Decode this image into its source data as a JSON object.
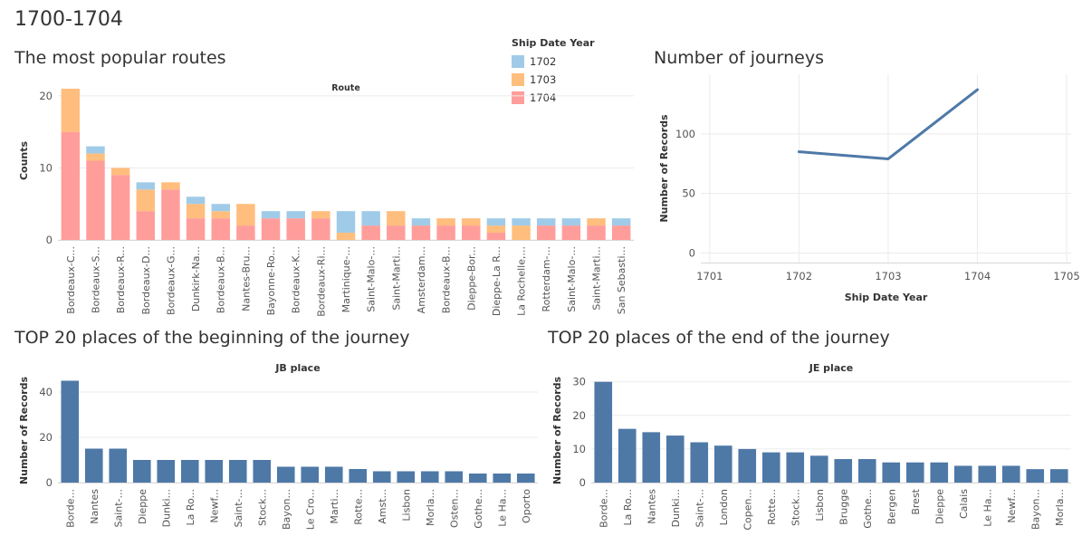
{
  "page_title": "1700-1704",
  "colors": {
    "y1702": "#A0CBE8",
    "y1703": "#FFBE7D",
    "y1704": "#FF9D9A",
    "bar_blue": "#4E79A7",
    "line_blue": "#4E79A7"
  },
  "legend": {
    "title": "Ship Date Year",
    "items": [
      {
        "label": "1702",
        "color": "#A0CBE8"
      },
      {
        "label": "1703",
        "color": "#FFBE7D"
      },
      {
        "label": "1704",
        "color": "#FF9D9A"
      }
    ]
  },
  "chart_data": [
    {
      "id": "routes",
      "type": "bar",
      "stacked": true,
      "title": "The most popular routes",
      "header": "Route",
      "ylabel": "Counts",
      "ylim": [
        0,
        22
      ],
      "yticks": [
        0,
        10,
        20
      ],
      "categories": [
        "Bordeaux-C...",
        "Bordeaux-S...",
        "Bordeaux-R...",
        "Bordeaux-D...",
        "Bordeaux-G...",
        "Dunkirk-Na...",
        "Bordeaux-B...",
        "Nantes-Bru...",
        "Bayonne-Ro...",
        "Bordeaux-K...",
        "Bordeaux-Ri...",
        "Martinique-...",
        "Saint-Malo-...",
        "Saint-Marti...",
        "Amsterdam...",
        "Bordeaux-B...",
        "Dieppe-Bor...",
        "Dieppe-La R...",
        "La Rochelle,...",
        "Rotterdam-...",
        "Saint-Malo-...",
        "Saint-Marti...",
        "San Sebasti..."
      ],
      "series": [
        {
          "name": "1704",
          "color": "#FF9D9A",
          "values": [
            15,
            11,
            9,
            4,
            7,
            3,
            3,
            2,
            3,
            3,
            3,
            0,
            2,
            2,
            2,
            2,
            2,
            1,
            0,
            2,
            2,
            2,
            2
          ]
        },
        {
          "name": "1703",
          "color": "#FFBE7D",
          "values": [
            6,
            1,
            1,
            3,
            1,
            2,
            1,
            3,
            0,
            0,
            1,
            1,
            0,
            2,
            0,
            1,
            1,
            1,
            2,
            0,
            0,
            1,
            0
          ]
        },
        {
          "name": "1702",
          "color": "#A0CBE8",
          "values": [
            0,
            1,
            0,
            1,
            0,
            1,
            1,
            0,
            1,
            1,
            0,
            3,
            2,
            0,
            1,
            0,
            0,
            1,
            1,
            1,
            1,
            0,
            1
          ]
        }
      ]
    },
    {
      "id": "journeys",
      "type": "line",
      "title": "Number of journeys",
      "xlabel": "Ship Date Year",
      "ylabel": "Number of Records",
      "x": [
        1702,
        1703,
        1704
      ],
      "values": [
        85,
        79,
        137
      ],
      "xticks": [
        1701,
        1702,
        1703,
        1704,
        1705
      ],
      "yticks": [
        0,
        50,
        100
      ],
      "xlim": [
        1700.9,
        1705.05
      ],
      "ylim": [
        -8,
        150
      ]
    },
    {
      "id": "jb",
      "type": "bar",
      "title": "TOP 20 places of the beginning of the journey",
      "header": "JB place",
      "ylabel": "Number of Records",
      "ylim": [
        0,
        46
      ],
      "yticks": [
        0,
        20,
        40
      ],
      "categories": [
        "Borde...",
        "Nantes",
        "Saint-...",
        "Dieppe",
        "Dunki...",
        "La Ro...",
        "Newf...",
        "Saint-...",
        "Stock...",
        "Bayon...",
        "Le Cro...",
        "Marti...",
        "Rotte...",
        "Amst...",
        "Lisbon",
        "Morla...",
        "Osten...",
        "Gothe...",
        "Le Ha...",
        "Oporto"
      ],
      "values": [
        45,
        15,
        15,
        10,
        10,
        10,
        10,
        10,
        10,
        7,
        7,
        7,
        6,
        5,
        5,
        5,
        5,
        4,
        4,
        4
      ]
    },
    {
      "id": "je",
      "type": "bar",
      "title": "TOP 20 places of the end of the journey",
      "header": "JE place",
      "ylabel": "Number of Records",
      "ylim": [
        0,
        31
      ],
      "yticks": [
        0,
        10,
        20,
        30
      ],
      "categories": [
        "Borde...",
        "La Ro...",
        "Nantes",
        "Dunki...",
        "Saint-...",
        "London",
        "Copen...",
        "Rotte...",
        "Stock...",
        "Lisbon",
        "Brugge",
        "Gothe...",
        "Bergen",
        "Brest",
        "Dieppe",
        "Calais",
        "Le Ha...",
        "Newf...",
        "Bayon...",
        "Morla..."
      ],
      "values": [
        30,
        16,
        15,
        14,
        12,
        11,
        10,
        9,
        9,
        8,
        7,
        7,
        6,
        6,
        6,
        5,
        5,
        5,
        4,
        4
      ]
    }
  ]
}
